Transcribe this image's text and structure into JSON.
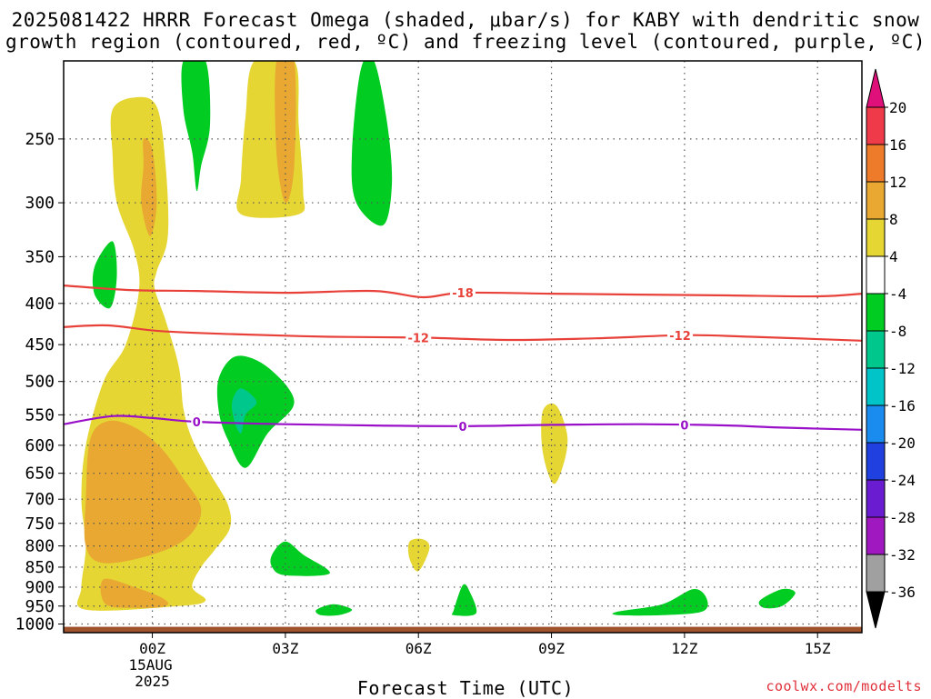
{
  "title_line1": "2025081422 HRRR Forecast Omega (shaded, μbar/s) for KABY with dendritic snow",
  "title_line2": "growth region (contoured, red, ºC) and freezing level (contoured, purple, ºC)",
  "credit": "coolwx.com/modelts",
  "chart_data": {
    "type": "heatmap",
    "xlabel": "Forecast Time (UTC)",
    "ylabel": "",
    "x_ticks": [
      {
        "hour": 0,
        "label": "00Z",
        "sub1": "15AUG",
        "sub2": "2025"
      },
      {
        "hour": 3,
        "label": "03Z"
      },
      {
        "hour": 6,
        "label": "06Z"
      },
      {
        "hour": 9,
        "label": "09Z"
      },
      {
        "hour": 12,
        "label": "12Z"
      },
      {
        "hour": 15,
        "label": "15Z"
      }
    ],
    "xlim_hours": [
      -2,
      16
    ],
    "ylim_hpa": [
      1025,
      200
    ],
    "y_scale": "log-pressure",
    "y_ticks": [
      250,
      300,
      350,
      400,
      450,
      500,
      550,
      600,
      650,
      700,
      750,
      800,
      850,
      900,
      950,
      1000
    ],
    "grid": true,
    "colorbar": {
      "labels": [
        "20",
        "16",
        "12",
        "8",
        "4",
        "-4",
        "-8",
        "-12",
        "-16",
        "-20",
        "-24",
        "-28",
        "-32",
        "-36"
      ],
      "colors": [
        "#ef3a4a",
        "#ee7b2a",
        "#e8a832",
        "#e5d634",
        "#ffffff",
        "#00cc22",
        "#00c88c",
        "#00c4c8",
        "#1a8cf0",
        "#2040e0",
        "#6a1cd0",
        "#a018c0",
        "#a0a0a0"
      ],
      "top_arrow_color": "#e0107a",
      "bottom_arrow_color": "#000000"
    },
    "omega_regions": [
      {
        "level": "4",
        "color": "#e5d634",
        "points": [
          [
            -0.9,
            230
          ],
          [
            -0.4,
            222
          ],
          [
            0.1,
            228
          ],
          [
            0.3,
            270
          ],
          [
            0.35,
            330
          ],
          [
            0.1,
            365
          ],
          [
            0.05,
            383
          ],
          [
            0.3,
            420
          ],
          [
            0.6,
            480
          ],
          [
            0.7,
            540
          ],
          [
            0.9,
            590
          ],
          [
            1.3,
            650
          ],
          [
            1.7,
            710
          ],
          [
            1.75,
            760
          ],
          [
            1.4,
            810
          ],
          [
            1.1,
            850
          ],
          [
            0.9,
            900
          ],
          [
            1.2,
            935
          ],
          [
            0.6,
            950
          ],
          [
            -1.5,
            960
          ],
          [
            -1.6,
            900
          ],
          [
            -1.5,
            800
          ],
          [
            -1.6,
            700
          ],
          [
            -1.5,
            600
          ],
          [
            -1.1,
            500
          ],
          [
            -0.6,
            450
          ],
          [
            -0.3,
            385
          ],
          [
            -0.4,
            345
          ],
          [
            -0.8,
            300
          ],
          [
            -0.9,
            260
          ]
        ]
      },
      {
        "level": "8",
        "color": "#e8a832",
        "points": [
          [
            -0.2,
            250
          ],
          [
            0.0,
            258
          ],
          [
            0.1,
            300
          ],
          [
            -0.05,
            330
          ],
          [
            -0.25,
            300
          ],
          [
            -0.2,
            270
          ]
        ]
      },
      {
        "level": "8",
        "color": "#e8a832",
        "points": [
          [
            -1.4,
            590
          ],
          [
            -1.0,
            560
          ],
          [
            -0.4,
            570
          ],
          [
            0.2,
            605
          ],
          [
            0.7,
            660
          ],
          [
            1.1,
            720
          ],
          [
            0.8,
            780
          ],
          [
            0.0,
            820
          ],
          [
            -1.1,
            840
          ],
          [
            -1.5,
            800
          ],
          [
            -1.5,
            700
          ]
        ]
      },
      {
        "level": "8",
        "color": "#e8a832",
        "points": [
          [
            -1.1,
            880
          ],
          [
            -0.4,
            900
          ],
          [
            0.25,
            930
          ],
          [
            0.3,
            950
          ],
          [
            -0.3,
            955
          ],
          [
            -1.05,
            945
          ]
        ]
      },
      {
        "level": "4",
        "color": "#e5d634",
        "points": [
          [
            2.3,
            200
          ],
          [
            3.2,
            200
          ],
          [
            3.3,
            240
          ],
          [
            3.4,
            290
          ],
          [
            3.3,
            310
          ],
          [
            2.0,
            310
          ],
          [
            2.0,
            280
          ],
          [
            2.1,
            235
          ]
        ]
      },
      {
        "level": "8",
        "color": "#e8a832",
        "points": [
          [
            2.8,
            200
          ],
          [
            3.2,
            200
          ],
          [
            3.2,
            270
          ],
          [
            3.0,
            300
          ],
          [
            2.8,
            260
          ]
        ]
      },
      {
        "level": "4",
        "color": "#e5d634",
        "points": [
          [
            8.8,
            545
          ],
          [
            9.1,
            535
          ],
          [
            9.35,
            580
          ],
          [
            9.3,
            625
          ],
          [
            9.05,
            670
          ],
          [
            8.8,
            610
          ]
        ]
      },
      {
        "level": "4",
        "color": "#e5d634",
        "points": [
          [
            5.8,
            790
          ],
          [
            6.1,
            785
          ],
          [
            6.25,
            805
          ],
          [
            6.0,
            860
          ],
          [
            5.8,
            830
          ]
        ]
      },
      {
        "level": "-4",
        "color": "#00cc22",
        "points": [
          [
            0.7,
            200
          ],
          [
            1.2,
            200
          ],
          [
            1.3,
            240
          ],
          [
            1.1,
            270
          ],
          [
            1.0,
            290
          ],
          [
            0.9,
            260
          ],
          [
            0.7,
            230
          ]
        ]
      },
      {
        "level": "-4",
        "color": "#00cc22",
        "points": [
          [
            4.7,
            205
          ],
          [
            5.0,
            200
          ],
          [
            5.3,
            240
          ],
          [
            5.4,
            285
          ],
          [
            5.2,
            320
          ],
          [
            4.6,
            300
          ],
          [
            4.5,
            260
          ]
        ]
      },
      {
        "level": "-4",
        "color": "#00cc22",
        "points": [
          [
            -1.3,
            360
          ],
          [
            -0.9,
            335
          ],
          [
            -0.8,
            370
          ],
          [
            -0.95,
            405
          ],
          [
            -1.3,
            390
          ]
        ]
      },
      {
        "level": "-4",
        "color": "#00cc22",
        "points": [
          [
            1.5,
            495
          ],
          [
            1.9,
            465
          ],
          [
            2.6,
            480
          ],
          [
            3.2,
            530
          ],
          [
            2.6,
            580
          ],
          [
            2.1,
            640
          ],
          [
            1.7,
            590
          ],
          [
            1.5,
            545
          ]
        ]
      },
      {
        "level": "-8",
        "color": "#00c88c",
        "points": [
          [
            1.8,
            530
          ],
          [
            2.0,
            510
          ],
          [
            2.35,
            530
          ],
          [
            2.1,
            550
          ],
          [
            2.0,
            580
          ],
          [
            1.85,
            560
          ]
        ]
      },
      {
        "level": "-4",
        "color": "#00cc22",
        "points": [
          [
            2.7,
            820
          ],
          [
            3.0,
            790
          ],
          [
            3.4,
            820
          ],
          [
            4.0,
            865
          ],
          [
            3.0,
            870
          ],
          [
            2.7,
            850
          ]
        ]
      },
      {
        "level": "-4",
        "color": "#00cc22",
        "points": [
          [
            3.7,
            960
          ],
          [
            4.1,
            945
          ],
          [
            4.5,
            960
          ],
          [
            4.2,
            975
          ],
          [
            3.8,
            975
          ]
        ]
      },
      {
        "level": "-4",
        "color": "#00cc22",
        "points": [
          [
            6.8,
            960
          ],
          [
            7.0,
            895
          ],
          [
            7.15,
            910
          ],
          [
            7.3,
            970
          ],
          [
            6.8,
            975
          ]
        ]
      },
      {
        "level": "-4",
        "color": "#00cc22",
        "points": [
          [
            10.5,
            965
          ],
          [
            11.5,
            945
          ],
          [
            12.2,
            905
          ],
          [
            12.5,
            930
          ],
          [
            12.4,
            965
          ],
          [
            11.5,
            975
          ],
          [
            10.5,
            975
          ]
        ]
      },
      {
        "level": "-4",
        "color": "#00cc22",
        "points": [
          [
            13.7,
            935
          ],
          [
            14.2,
            905
          ],
          [
            14.5,
            915
          ],
          [
            14.2,
            950
          ],
          [
            13.8,
            955
          ]
        ]
      }
    ],
    "contours": [
      {
        "name": "-18",
        "color": "#e8413a",
        "label": "-18",
        "points": [
          [
            -2,
            380
          ],
          [
            -0.5,
            385
          ],
          [
            1,
            386
          ],
          [
            3,
            388
          ],
          [
            5,
            386
          ],
          [
            6.1,
            393
          ],
          [
            7,
            388
          ],
          [
            9,
            389
          ],
          [
            11,
            390
          ],
          [
            13,
            391
          ],
          [
            15,
            392
          ],
          [
            16,
            389
          ]
        ],
        "label_hours": [
          7
        ]
      },
      {
        "name": "-12",
        "color": "#e8413a",
        "label": "-12",
        "points": [
          [
            -2,
            428
          ],
          [
            -1,
            426
          ],
          [
            0.2,
            433
          ],
          [
            2,
            437
          ],
          [
            4,
            440
          ],
          [
            6,
            441
          ],
          [
            8,
            444
          ],
          [
            10,
            442
          ],
          [
            12,
            438
          ],
          [
            13.5,
            440
          ],
          [
            16,
            445
          ]
        ],
        "label_hours": [
          6,
          11.9
        ]
      },
      {
        "name": "0",
        "color": "#9a10c8",
        "label": "0",
        "points": [
          [
            -2,
            565
          ],
          [
            -0.9,
            552
          ],
          [
            0,
            555
          ],
          [
            1,
            561
          ],
          [
            3,
            565
          ],
          [
            5,
            567
          ],
          [
            7,
            568
          ],
          [
            9,
            566
          ],
          [
            11,
            565
          ],
          [
            13,
            567
          ],
          [
            14,
            570
          ],
          [
            16,
            574
          ]
        ],
        "label_hours": [
          1,
          7,
          12
        ]
      }
    ],
    "terrain": {
      "color": "#a0522d",
      "top_hpa": 1008
    }
  }
}
